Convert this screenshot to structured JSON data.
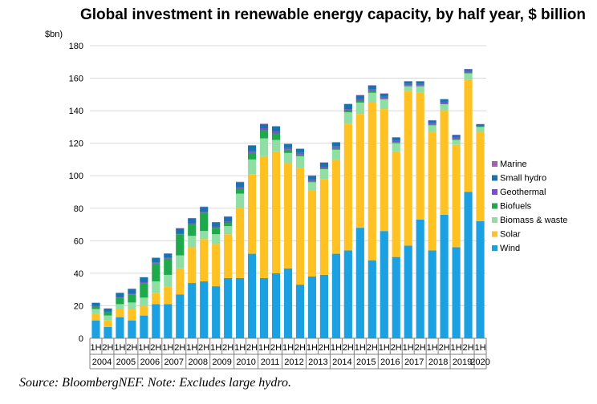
{
  "title": "Global investment in renewable energy capacity, by half year, $ billion",
  "source": "Source: BloombergNEF. Note: Excludes large hydro.",
  "chart_data": {
    "type": "bar",
    "stacked": true,
    "ylabel": "$bn)",
    "ylim": [
      0,
      180
    ],
    "yticks": [
      0,
      20,
      40,
      60,
      80,
      100,
      120,
      140,
      160,
      180
    ],
    "grid": true,
    "legend_position": "right",
    "categories": [
      "1H",
      "2H",
      "1H",
      "2H",
      "1H",
      "2H",
      "1H",
      "2H",
      "1H",
      "2H",
      "1H",
      "2H",
      "1H",
      "2H",
      "1H",
      "2H",
      "1H",
      "2H",
      "1H",
      "2H",
      "1H",
      "2H",
      "1H",
      "2H",
      "1H",
      "2H",
      "1H",
      "2H",
      "1H",
      "2H",
      "1H",
      "2H",
      "1H"
    ],
    "years": [
      "2004",
      "2005",
      "2006",
      "2007",
      "2008",
      "2009",
      "2010",
      "2011",
      "2012",
      "2013",
      "2014",
      "2015",
      "2016",
      "2017",
      "2018",
      "2019",
      "2020"
    ],
    "series": [
      {
        "name": "Wind",
        "color": "#1ba1e2",
        "values": [
          11,
          7,
          13,
          11,
          14,
          21,
          21,
          27,
          34,
          35,
          32,
          37,
          37,
          52,
          37,
          40,
          43,
          33,
          38,
          39,
          52,
          54,
          68,
          48,
          66,
          50,
          57,
          73,
          54,
          76,
          56,
          90,
          72
        ]
      },
      {
        "name": "Solar",
        "color": "#ffc222",
        "values": [
          4,
          4,
          5,
          7,
          6,
          7,
          11,
          16,
          22,
          26,
          26,
          27,
          43,
          49,
          75,
          75,
          65,
          72,
          53,
          59,
          58,
          78,
          70,
          97,
          75,
          65,
          95,
          78,
          73,
          64,
          63,
          69,
          55
        ]
      },
      {
        "name": "Biomass & waste",
        "color": "#8fdfa5",
        "values": [
          3,
          3,
          3,
          4,
          5,
          7,
          7,
          8,
          7,
          5,
          6,
          5,
          9,
          9,
          11,
          7,
          6,
          7,
          5,
          6,
          6,
          7,
          7,
          6,
          6,
          5,
          3,
          4,
          4,
          4,
          3,
          4,
          3
        ]
      },
      {
        "name": "Biofuels",
        "color": "#1ea94b",
        "values": [
          1.5,
          2,
          4,
          5,
          9,
          11,
          10,
          13,
          7,
          11,
          4,
          2,
          3,
          4,
          5,
          4,
          2,
          1,
          0.5,
          0.5,
          1,
          1,
          1,
          1,
          0.5,
          0.5,
          0.5,
          0.5,
          0.5,
          0.5,
          0.5,
          0.5,
          0.2
        ]
      },
      {
        "name": "Geothermal",
        "color": "#7b4fc9",
        "values": [
          0.3,
          0.3,
          0.4,
          0.4,
          0.5,
          0.5,
          0.6,
          0.6,
          0.8,
          0.8,
          0.8,
          0.8,
          1,
          1,
          1.2,
          1.2,
          1,
          1,
          1,
          1,
          1,
          1,
          1,
          1,
          1,
          1,
          1,
          1,
          1,
          1,
          1,
          1,
          0.5
        ]
      },
      {
        "name": "Small hydro",
        "color": "#1773b0",
        "values": [
          2,
          2,
          2.5,
          3,
          3,
          3,
          2.5,
          3,
          3,
          3,
          2.5,
          3,
          3,
          3.5,
          2.5,
          3,
          2.5,
          2.5,
          2.5,
          2.5,
          2.5,
          3,
          2.5,
          2.5,
          2,
          2,
          1.5,
          1.5,
          1.5,
          1.5,
          1.5,
          1,
          1
        ]
      },
      {
        "name": "Marine",
        "color": "#a45fb9",
        "values": [
          0.1,
          0.1,
          0.1,
          0.1,
          0.1,
          0.1,
          0.1,
          0.2,
          0.2,
          0.2,
          0.2,
          0.2,
          0.3,
          0.3,
          0.3,
          0.3,
          0.2,
          0.2,
          0.2,
          0.2,
          0.2,
          0.2,
          0.2,
          0.2,
          0.2,
          0.2,
          0.2,
          0.2,
          0.2,
          0.2,
          0.2,
          0.2,
          0.1
        ]
      }
    ]
  }
}
